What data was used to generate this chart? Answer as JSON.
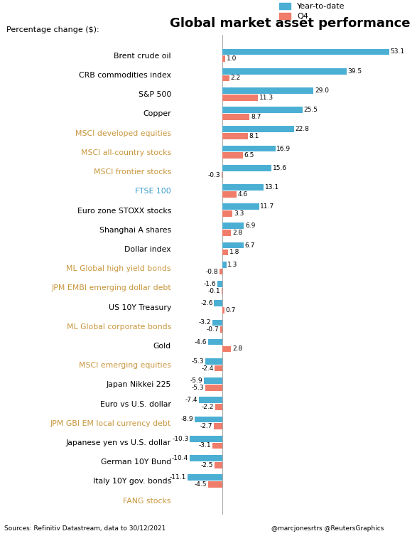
{
  "title": "Global market asset performance",
  "subtitle": "Percentage change ($):",
  "legend": [
    "Year-to-date",
    "Q4"
  ],
  "legend_colors": [
    "#4bafd4",
    "#f07c6a"
  ],
  "categories": [
    "Brent crude oil",
    "CRB commodities index",
    "S&P 500",
    "Copper",
    "MSCI developed equities",
    "MSCI all-country stocks",
    "MSCI frontier stocks",
    "FTSE 100",
    "Euro zone STOXX stocks",
    "Shanghai A shares",
    "Dollar index",
    "ML Global high yield bonds",
    "JPM EMBI emerging dollar debt",
    "US 10Y Treasury",
    "ML Global corporate bonds",
    "Gold",
    "MSCI emerging equities",
    "Japan Nikkei 225",
    "Euro vs U.S. dollar",
    "JPM GBI EM local currency debt",
    "Japanese yen vs U.S. dollar",
    "German 10Y Bund",
    "Italy 10Y gov. bonds",
    "FANG stocks"
  ],
  "ytd": [
    53.1,
    39.5,
    29.0,
    25.5,
    22.8,
    16.9,
    15.6,
    13.1,
    11.7,
    6.9,
    6.7,
    1.3,
    -1.6,
    -2.6,
    -3.2,
    -4.6,
    -5.3,
    -5.9,
    -7.4,
    -8.9,
    -10.3,
    -10.4,
    -11.1,
    null
  ],
  "q4": [
    1.0,
    2.2,
    11.3,
    8.7,
    8.1,
    6.5,
    -0.3,
    4.6,
    3.3,
    2.8,
    1.8,
    -0.8,
    -0.1,
    0.7,
    -0.7,
    2.8,
    -2.4,
    -5.3,
    -2.2,
    -2.7,
    -3.1,
    -2.5,
    -4.5,
    null
  ],
  "label_colors": {
    "MSCI developed equities": "#c8963c",
    "MSCI all-country stocks": "#c8963c",
    "MSCI frontier stocks": "#c8963c",
    "FTSE 100": "#3399cc",
    "ML Global high yield bonds": "#c8963c",
    "JPM EMBI emerging dollar debt": "#c8963c",
    "ML Global corporate bonds": "#c8963c",
    "MSCI emerging equities": "#c8963c",
    "JPM GBI EM local currency debt": "#c8963c",
    "FANG stocks": "#c8963c"
  },
  "footer_left": "Sources: Refinitiv Datastream, data to 30/12/2021",
  "footer_right": "@marcjonesrtrs @ReutersGraphics",
  "footer_bg": "#f4a09a",
  "bar_blue": "#4bafd4",
  "bar_red": "#f07c6a",
  "axis_line_color": "#aaaaaa",
  "bg_color": "#ffffff"
}
